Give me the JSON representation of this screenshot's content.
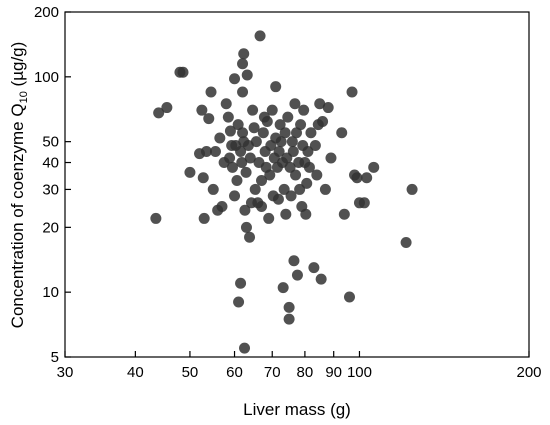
{
  "chart_data": {
    "type": "scatter",
    "xlabel": "Liver mass (g)",
    "ylabel_main": "Concentration of coenzyme Q",
    "ylabel_subscript": "10",
    "ylabel_unit": " (µg/g)",
    "x_scale": "log",
    "y_scale": "log",
    "xlim": [
      30,
      200
    ],
    "ylim": [
      5,
      200
    ],
    "x_ticks": [
      30,
      40,
      50,
      60,
      70,
      80,
      90,
      100,
      200
    ],
    "y_ticks": [
      5,
      10,
      20,
      30,
      40,
      50,
      100,
      200
    ],
    "grid": false,
    "point_color": "#333333",
    "points": [
      [
        43.5,
        22
      ],
      [
        44,
        68
      ],
      [
        45.5,
        72
      ],
      [
        48,
        105
      ],
      [
        48.6,
        105
      ],
      [
        50,
        36
      ],
      [
        52,
        44
      ],
      [
        52.5,
        70
      ],
      [
        52.8,
        34
      ],
      [
        53,
        22
      ],
      [
        53.5,
        45
      ],
      [
        54,
        64
      ],
      [
        54.5,
        85
      ],
      [
        55,
        30
      ],
      [
        55.5,
        45
      ],
      [
        56,
        24
      ],
      [
        56.5,
        52
      ],
      [
        57,
        25
      ],
      [
        57.5,
        40
      ],
      [
        58,
        75
      ],
      [
        58.5,
        65
      ],
      [
        58.8,
        42
      ],
      [
        59,
        56
      ],
      [
        59.3,
        48
      ],
      [
        59.5,
        38
      ],
      [
        60,
        98
      ],
      [
        60,
        28
      ],
      [
        60.3,
        48
      ],
      [
        60.6,
        33
      ],
      [
        60.9,
        60
      ],
      [
        61,
        9
      ],
      [
        61.5,
        11
      ],
      [
        61.5,
        45
      ],
      [
        61.8,
        40
      ],
      [
        62,
        85
      ],
      [
        62,
        55
      ],
      [
        62.3,
        50
      ],
      [
        62.6,
        24
      ],
      [
        62.9,
        36
      ],
      [
        62,
        115
      ],
      [
        62.3,
        128
      ],
      [
        62.5,
        5.5
      ],
      [
        63,
        20
      ],
      [
        63.2,
        102
      ],
      [
        63.5,
        48
      ],
      [
        63.8,
        18
      ],
      [
        64,
        42
      ],
      [
        64.3,
        26
      ],
      [
        64.6,
        70
      ],
      [
        65,
        58
      ],
      [
        65.3,
        30
      ],
      [
        65.6,
        50
      ],
      [
        66,
        26
      ],
      [
        66.3,
        40
      ],
      [
        66.6,
        155
      ],
      [
        67,
        25
      ],
      [
        67,
        33
      ],
      [
        67.5,
        55
      ],
      [
        67.8,
        65
      ],
      [
        68,
        45
      ],
      [
        68.3,
        38
      ],
      [
        68.6,
        62
      ],
      [
        69,
        22
      ],
      [
        69.3,
        35
      ],
      [
        69.6,
        48
      ],
      [
        70,
        70
      ],
      [
        70.3,
        28
      ],
      [
        70.6,
        42
      ],
      [
        71,
        52
      ],
      [
        71,
        90
      ],
      [
        71.5,
        38
      ],
      [
        71.8,
        27
      ],
      [
        72,
        45
      ],
      [
        72.3,
        60
      ],
      [
        72.6,
        50
      ],
      [
        73,
        40
      ],
      [
        73.2,
        10.5
      ],
      [
        73.5,
        30
      ],
      [
        73.8,
        55
      ],
      [
        74,
        23
      ],
      [
        74.3,
        42
      ],
      [
        74.6,
        65
      ],
      [
        75,
        8.5
      ],
      [
        75,
        7.5
      ],
      [
        75.3,
        38
      ],
      [
        75.6,
        28
      ],
      [
        76,
        50
      ],
      [
        76.3,
        45
      ],
      [
        76.5,
        14
      ],
      [
        76.8,
        75
      ],
      [
        77,
        35
      ],
      [
        77.3,
        55
      ],
      [
        77.6,
        12
      ],
      [
        78,
        40
      ],
      [
        78.3,
        30
      ],
      [
        78.6,
        60
      ],
      [
        79,
        25
      ],
      [
        79.3,
        48
      ],
      [
        79.6,
        70
      ],
      [
        80,
        40
      ],
      [
        80.3,
        23
      ],
      [
        80.6,
        32
      ],
      [
        81,
        45
      ],
      [
        81.5,
        38
      ],
      [
        82,
        55
      ],
      [
        83,
        13
      ],
      [
        83.5,
        48
      ],
      [
        84,
        35
      ],
      [
        84.5,
        60
      ],
      [
        85,
        75
      ],
      [
        85.5,
        11.5
      ],
      [
        86,
        62
      ],
      [
        87,
        30
      ],
      [
        88,
        72
      ],
      [
        89,
        42
      ],
      [
        93,
        55
      ],
      [
        94,
        23
      ],
      [
        96,
        9.5
      ],
      [
        97,
        85
      ],
      [
        98,
        35
      ],
      [
        99,
        34
      ],
      [
        100,
        26
      ],
      [
        102,
        26
      ],
      [
        103,
        34
      ],
      [
        106,
        38
      ],
      [
        121,
        17
      ],
      [
        124,
        30
      ]
    ]
  }
}
